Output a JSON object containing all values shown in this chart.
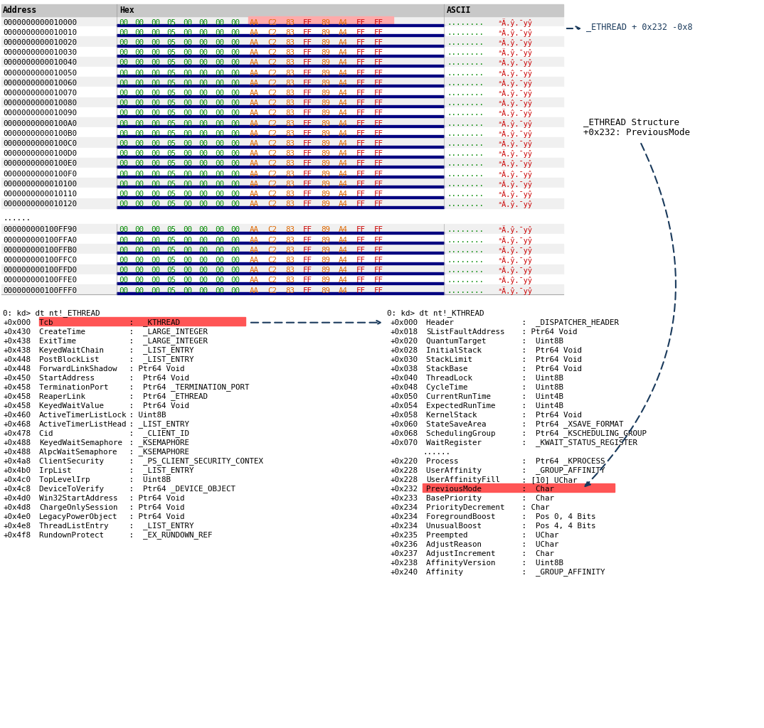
{
  "bg_color": "#ffffff",
  "addresses1": [
    "0000000000010000",
    "0000000000010010",
    "0000000000010020",
    "0000000000010030",
    "0000000000010040",
    "0000000000010050",
    "0000000000010060",
    "0000000000010070",
    "0000000000010080",
    "0000000000010090",
    "00000000000100A0",
    "00000000000100B0",
    "00000000000100C0",
    "00000000000100D0",
    "00000000000100E0",
    "00000000000100F0",
    "0000000000010100",
    "0000000000010110",
    "0000000000010120"
  ],
  "addresses2": [
    "000000000100FF90",
    "000000000100FFA0",
    "000000000100FFB0",
    "000000000100FFC0",
    "000000000100FFD0",
    "000000000100FFE0",
    "000000000100FFF0"
  ],
  "green_bytes": [
    "00",
    "00",
    "00",
    "05",
    "00",
    "00",
    "00",
    "00"
  ],
  "red_bytes": [
    "AA",
    "C2",
    "83",
    "FF",
    "89",
    "A4",
    "FF",
    "FF"
  ],
  "red_colors": [
    "#dd6600",
    "#dd6600",
    "#dd6600",
    "#cc0000",
    "#dd6600",
    "#dd6600",
    "#cc0000",
    "#cc0000"
  ],
  "ascii_dots": "........",
  "ascii_special": "ᵃÄ.ŷ.¯yŷ",
  "ethread_label": "_ETHREAD + 0x232 -0x8",
  "struct_label1": "_ETHREAD Structure",
  "struct_label2": "+0x232: PreviousMode",
  "ethread_cmd": "0: kd> dt nt!_ETHREAD",
  "kthread_cmd": "0: kd> dt nt!_KTHREAD",
  "ethread_fields": [
    [
      "+0x000",
      "Tcb             ",
      " :  _KTHREAD",
      true
    ],
    [
      "+0x430",
      "CreateTime      ",
      " :  _LARGE_INTEGER",
      false
    ],
    [
      "+0x438",
      "ExitTime        ",
      " :  _LARGE_INTEGER",
      false
    ],
    [
      "+0x438",
      "KeyedWaitChain  ",
      " :  _LIST_ENTRY",
      false
    ],
    [
      "+0x448",
      "PostBlockList   ",
      " :  _LIST_ENTRY",
      false
    ],
    [
      "+0x448",
      "ForwardLinkShadow",
      " : Ptr64 Void",
      false
    ],
    [
      "+0x450",
      "StartAddress    ",
      " :  Ptr64 Void",
      false
    ],
    [
      "+0x458",
      "TerminationPort ",
      " :  Ptr64 _TERMINATION_PORT",
      false
    ],
    [
      "+0x458",
      "ReaperLink      ",
      " :  Ptr64 _ETHREAD",
      false
    ],
    [
      "+0x458",
      "KeyedWaitValue  ",
      " :  Ptr64 Void",
      false
    ],
    [
      "+0x460",
      "ActiveTimerListLock",
      " : Uint8B",
      false
    ],
    [
      "+0x468",
      "ActiveTimerListHead",
      " : _LIST_ENTRY",
      false
    ],
    [
      "+0x478",
      "Cid             ",
      " :  _CLIENT_ID",
      false
    ],
    [
      "+0x488",
      "KeyedWaitSemaphore",
      " : _KSEMAPHORE",
      false
    ],
    [
      "+0x488",
      "AlpcWaitSemaphore",
      " : _KSEMAPHORE",
      false
    ],
    [
      "+0x4a8",
      "ClientSecurity  ",
      " :  _PS_CLIENT_SECURITY_CONTEX",
      false
    ],
    [
      "+0x4b0",
      "IrpList         ",
      " :  _LIST_ENTRY",
      false
    ],
    [
      "+0x4c0",
      "TopLevelIrp     ",
      " :  Uint8B",
      false
    ],
    [
      "+0x4c8",
      "DeviceToVerify  ",
      " :  Ptr64 _DEVICE_OBJECT",
      false
    ],
    [
      "+0x4d0",
      "Win32StartAddress",
      " : Ptr64 Void",
      false
    ],
    [
      "+0x4d8",
      "ChargeOnlySession",
      " : Ptr64 Void",
      false
    ],
    [
      "+0x4e0",
      "LegacyPowerObject",
      " : Ptr64 Void",
      false
    ],
    [
      "+0x4e8",
      "ThreadListEntry ",
      " :  _LIST_ENTRY",
      false
    ],
    [
      "+0x4f8",
      "RundownProtect  ",
      " :  _EX_RUNDOWN_REF",
      false
    ]
  ],
  "kthread_fields": [
    [
      "+0x000",
      "Header          ",
      " :  _DISPATCHER_HEADER",
      false
    ],
    [
      "+0x018",
      "SListFaultAddress",
      " : Ptr64 Void",
      false
    ],
    [
      "+0x020",
      "QuantumTarget   ",
      " :  Uint8B",
      false
    ],
    [
      "+0x028",
      "InitialStack    ",
      " :  Ptr64 Void",
      false
    ],
    [
      "+0x030",
      "StackLimit      ",
      " :  Ptr64 Void",
      false
    ],
    [
      "+0x038",
      "StackBase       ",
      " :  Ptr64 Void",
      false
    ],
    [
      "+0x040",
      "ThreadLock      ",
      " :  Uint8B",
      false
    ],
    [
      "+0x048",
      "CycleTime       ",
      " :  Uint8B",
      false
    ],
    [
      "+0x050",
      "CurrentRunTime  ",
      " :  Uint4B",
      false
    ],
    [
      "+0x054",
      "ExpectedRunTime ",
      " :  Uint4B",
      false
    ],
    [
      "+0x058",
      "KernelStack     ",
      " :  Ptr64 Void",
      false
    ],
    [
      "+0x060",
      "StateSaveArea   ",
      " :  Ptr64 _XSAVE_FORMAT",
      false
    ],
    [
      "+0x068",
      "SchedulingGroup ",
      " :  Ptr64 _KSCHEDULING_GROUP",
      false
    ],
    [
      "+0x070",
      "WaitRegister    ",
      " :  _KWAIT_STATUS_REGISTER",
      false
    ],
    [
      "......",
      "",
      "",
      false
    ],
    [
      "+0x220",
      "Process         ",
      " :  Ptr64 _KPROCESS",
      false
    ],
    [
      "+0x228",
      "UserAffinity    ",
      " :  _GROUP_AFFINITY",
      false
    ],
    [
      "+0x228",
      "UserAffinityFill",
      " : [10] UChar",
      false
    ],
    [
      "+0x232",
      "PreviousMode    ",
      " :  Char",
      true
    ],
    [
      "+0x233",
      "BasePriority    ",
      " :  Char",
      false
    ],
    [
      "+0x234",
      "PriorityDecrement",
      " : Char",
      false
    ],
    [
      "+0x234",
      "ForegroundBoost ",
      " :  Pos 0, 4 Bits",
      false
    ],
    [
      "+0x234",
      "UnusualBoost    ",
      " :  Pos 4, 4 Bits",
      false
    ],
    [
      "+0x235",
      "Preempted       ",
      " :  UChar",
      false
    ],
    [
      "+0x236",
      "AdjustReason    ",
      " :  UChar",
      false
    ],
    [
      "+0x237",
      "AdjustIncrement ",
      " :  Char",
      false
    ],
    [
      "+0x238",
      "AffinityVersion ",
      " :  Uint8B",
      false
    ],
    [
      "+0x240",
      "Affinity        ",
      " :  _GROUP_AFFINITY",
      false
    ]
  ],
  "colors": {
    "header_bg": "#c8c8c8",
    "row_even": "#f0f0f0",
    "row_odd": "#ffffff",
    "blue_bar": "#000080",
    "green": "#008800",
    "red": "#cc0000",
    "orange": "#cc6600",
    "ascii_green": "#008800",
    "ascii_red": "#cc0000",
    "highlight_red": "#ff5555",
    "arrow": "#1a3a5c",
    "text": "#000000",
    "border": "#aaaaaa"
  },
  "font_size": 7.8,
  "field_font_size": 7.8
}
